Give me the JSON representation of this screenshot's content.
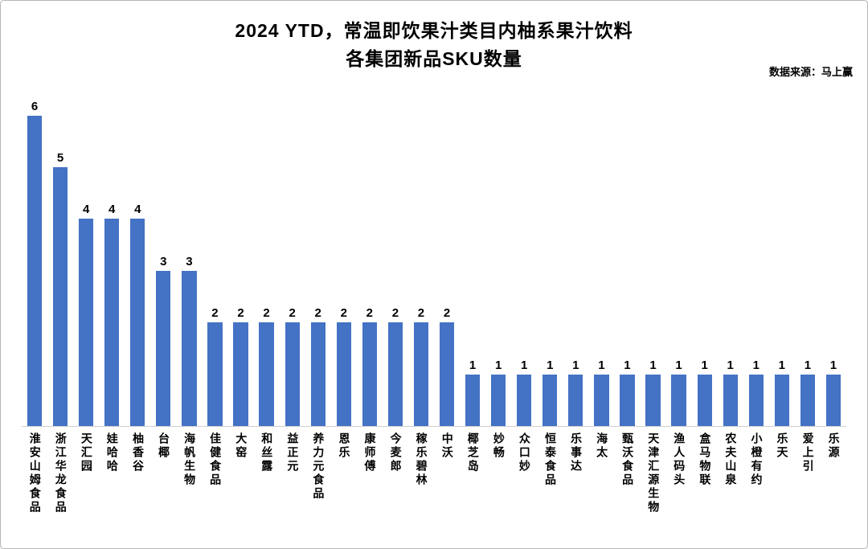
{
  "header": {
    "title_line1": "2024 YTD，常温即饮果汁类目内柚系果汁饮料",
    "title_line2": "各集团新品SKU数量",
    "source": "数据来源：马上赢"
  },
  "chart_data": {
    "type": "bar",
    "title": "2024 YTD，常温即饮果汁类目内柚系果汁饮料 各集团新品SKU数量",
    "xlabel": "",
    "ylabel": "",
    "ylim": [
      0,
      6.6
    ],
    "grid": false,
    "legend": false,
    "data_labels": true,
    "bar_color": "#4472C4",
    "categories": [
      "淮安山姆食品",
      "浙江华龙食品",
      "天汇园",
      "娃哈哈",
      "柚香谷",
      "台椰",
      "海帆生物",
      "佳健食品",
      "大窑",
      "和丝露",
      "益正元",
      "养力元食品",
      "恩乐",
      "康师傅",
      "今麦郎",
      "稼乐碧林",
      "中沃",
      "椰芝岛",
      "妙畅",
      "众口妙",
      "恒泰食品",
      "乐事达",
      "海太",
      "甄沃食品",
      "天津汇源生物",
      "渔人码头",
      "盒马物联",
      "农夫山泉",
      "小橙有约",
      "乐天",
      "爱上引",
      "乐源"
    ],
    "values": [
      6,
      5,
      4,
      4,
      4,
      3,
      3,
      2,
      2,
      2,
      2,
      2,
      2,
      2,
      2,
      2,
      2,
      1,
      1,
      1,
      1,
      1,
      1,
      1,
      1,
      1,
      1,
      1,
      1,
      1,
      1,
      1
    ]
  }
}
